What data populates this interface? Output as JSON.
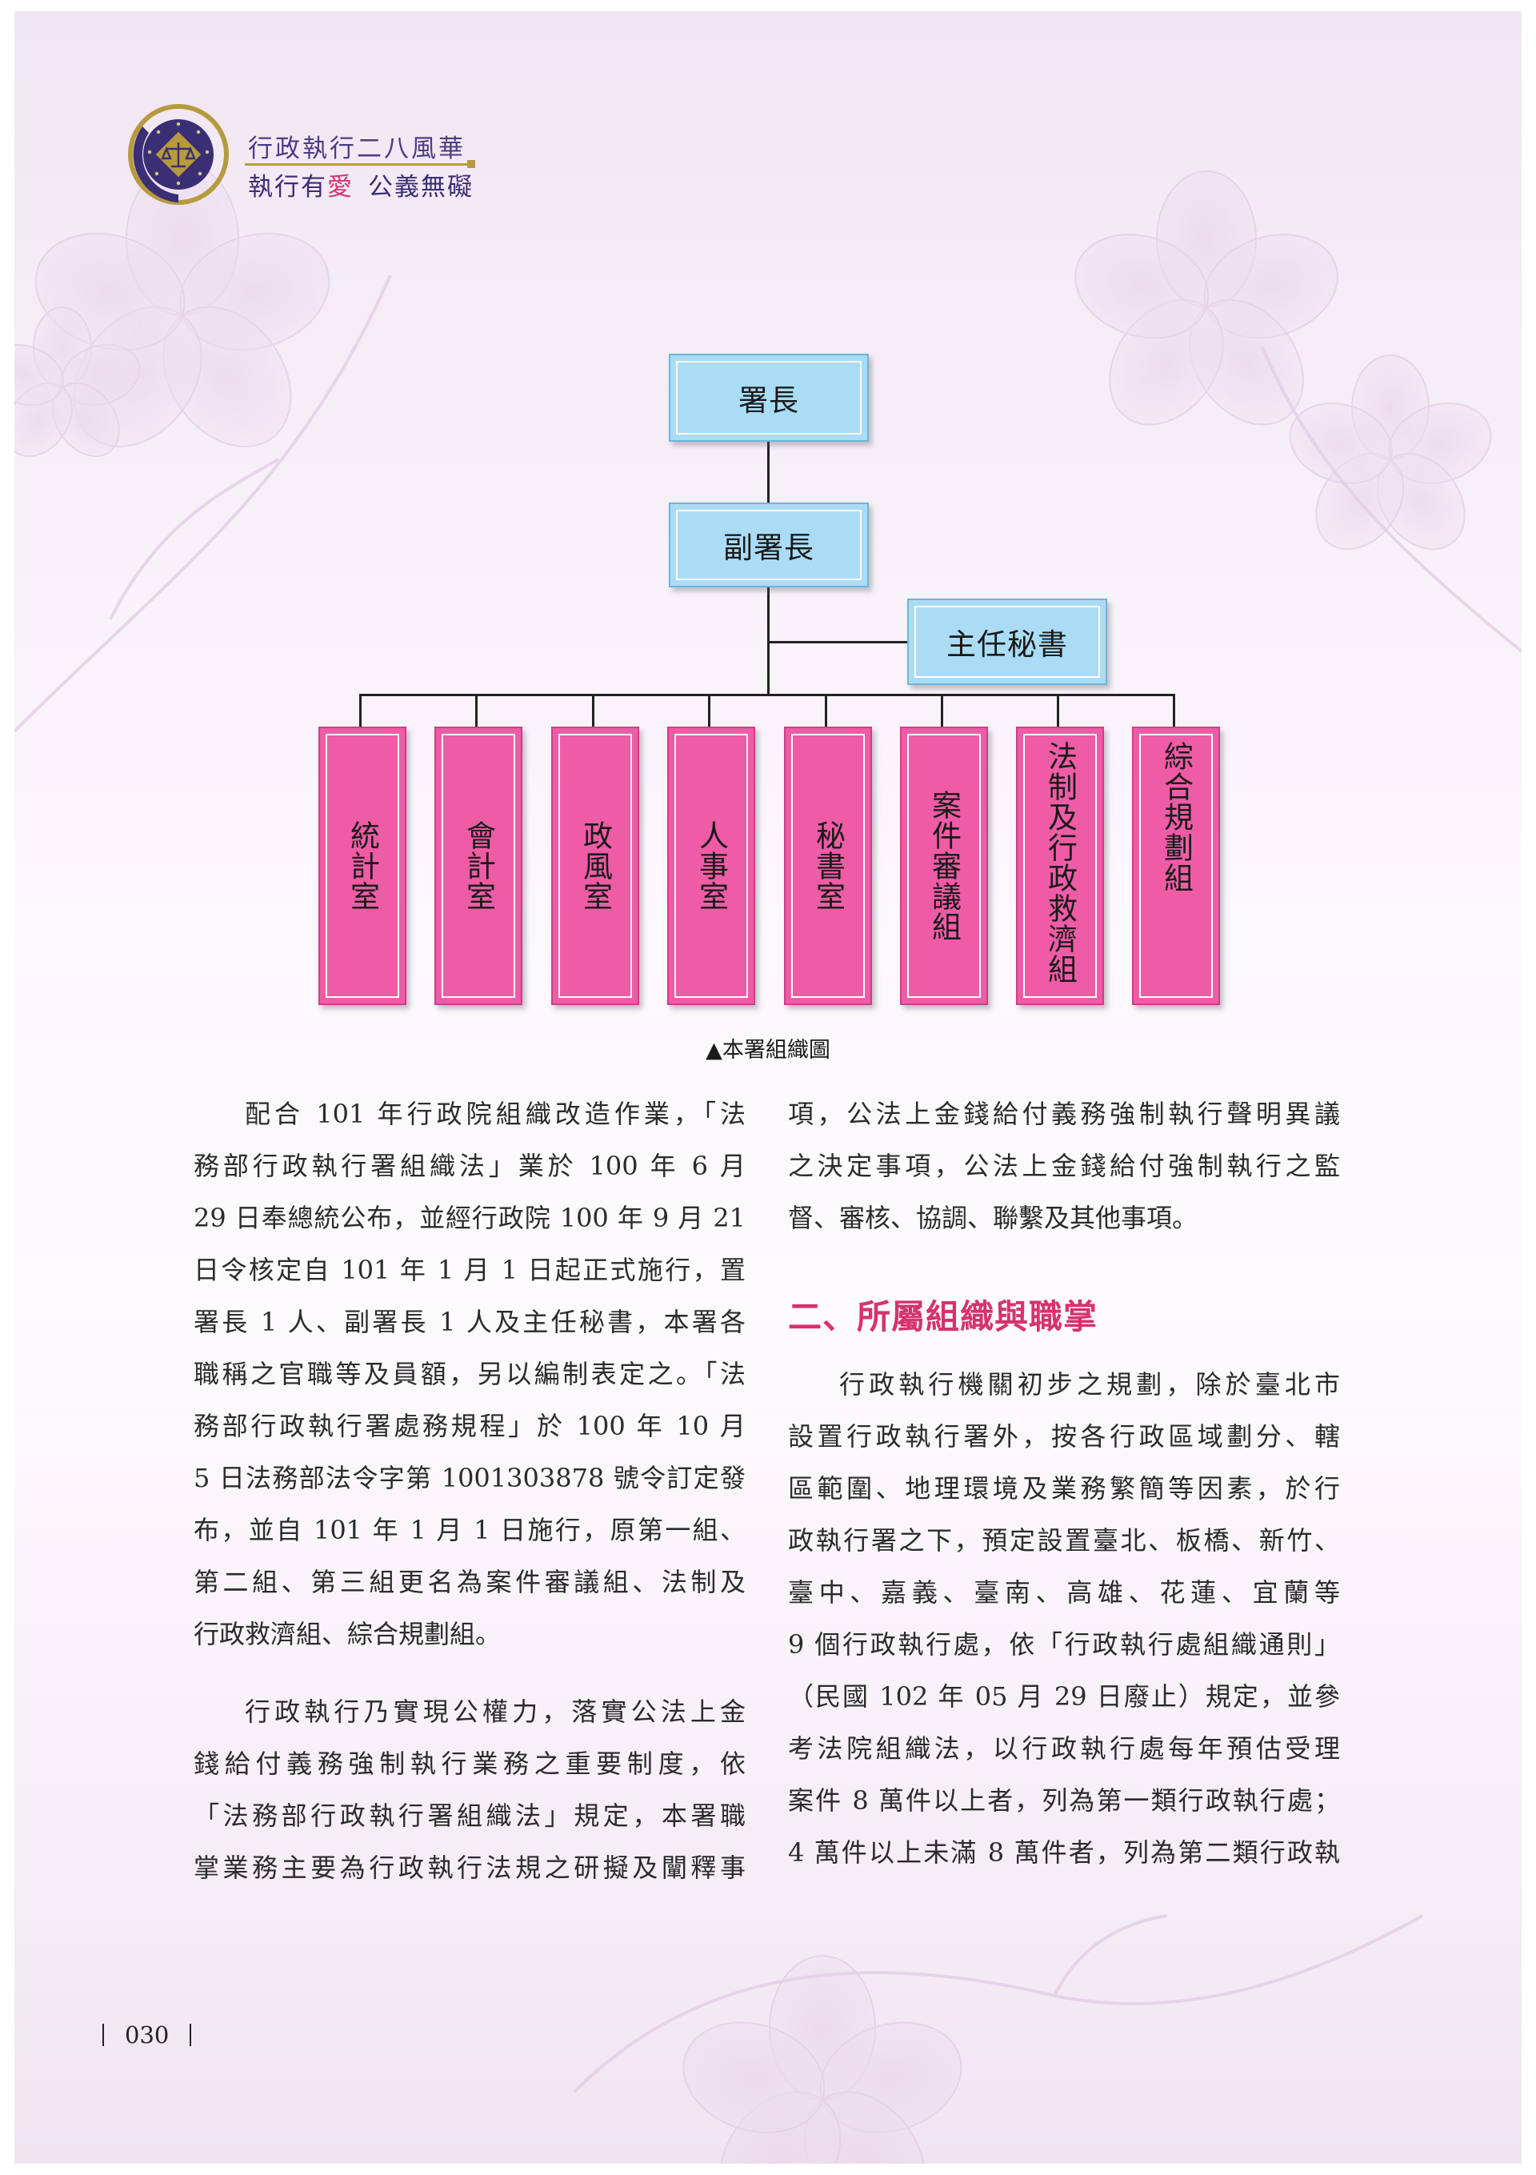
{
  "header": {
    "title": "行政執行二八風華",
    "slogan_part1": "執行有",
    "slogan_accent": "愛",
    "slogan_part2": "公義無礙"
  },
  "org_chart": {
    "head": "署長",
    "deputy": "副署長",
    "secretary": "主任秘書",
    "units": [
      "統計室",
      "會計室",
      "政風室",
      "人事室",
      "秘書室",
      "案件審議組",
      "法制及行政救濟組",
      "綜合規劃組"
    ],
    "caption": "▲本署組織圖"
  },
  "left_column": {
    "para1": [
      "配合 101 年行政院組織改造作業，「法",
      "務部行政執行署組織法」業於 100 年 6 月",
      "29 日奉總統公布，並經行政院 100 年 9 月 21",
      "日令核定自 101 年 1 月 1 日起正式施行，置",
      "署長 1 人、副署長 1 人及主任秘書，本署各",
      "職稱之官職等及員額，另以編制表定之。「法",
      "務部行政執行署處務規程」於 100 年 10 月",
      "5 日法務部法令字第 1001303878 號令訂定發",
      "布，並自 101 年 1 月 1 日施行，原第一組、",
      "第二組、第三組更名為案件審議組、法制及",
      "行政救濟組、綜合規劃組。"
    ],
    "para2": [
      "行政執行乃實現公權力，落實公法上金",
      "錢給付義務強制執行業務之重要制度，依",
      "「法務部行政執行署組織法」規定，本署職",
      "掌業務主要為行政執行法規之研擬及闡釋事"
    ]
  },
  "right_column": {
    "para1": [
      "項，公法上金錢給付義務強制執行聲明異議",
      "之決定事項，公法上金錢給付強制執行之監",
      "督、審核、協調、聯繫及其他事項。"
    ],
    "heading": "二、所屬組織與職掌",
    "para2": [
      "行政執行機關初步之規劃，除於臺北市",
      "設置行政執行署外，按各行政區域劃分、轄",
      "區範圍、地理環境及業務繁簡等因素，於行",
      "政執行署之下，預定設置臺北、板橋、新竹、",
      "臺中、嘉義、臺南、高雄、花蓮、宜蘭等",
      "9 個行政執行處，依「行政執行處組織通則」",
      "（民國 102 年 05 月 29 日廢止）規定，並參",
      "考法院組織法，以行政執行處每年預估受理",
      "案件 8 萬件以上者，列為第一類行政執行處；",
      "4 萬件以上未滿 8 萬件者，列為第二類行政執"
    ]
  },
  "footer": {
    "page_number": "030"
  },
  "colors": {
    "unit_box": "#ee5ca6",
    "leader_box": "#aadcf5",
    "heading": "#d6336c",
    "brand": "#4a3e84"
  }
}
